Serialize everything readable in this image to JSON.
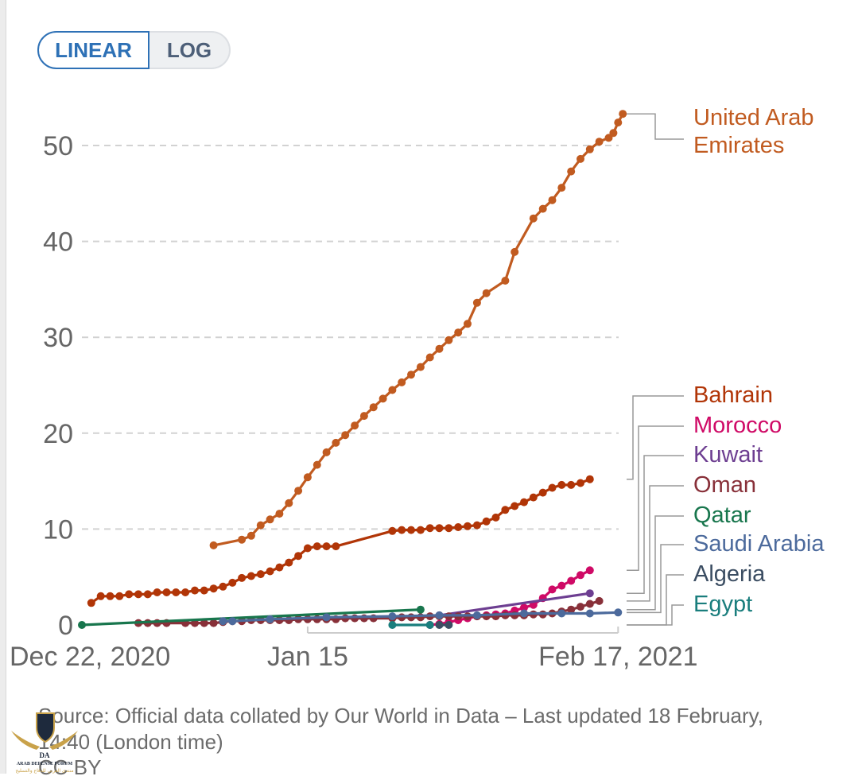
{
  "controls": {
    "scale_options": [
      "LINEAR",
      "LOG"
    ],
    "selected": "LINEAR"
  },
  "footer": {
    "source": "Source: Official data collated by Our World in Data – Last updated 18 February, 14:40 (London time)",
    "license": "CC BY"
  },
  "watermark": {
    "text": "ARAB DEFENSE FORUM",
    "arabic_text": "منتدى العربي للدفاع والتسليح"
  },
  "chart_data": {
    "type": "line",
    "title": "",
    "xlabel": "",
    "ylabel": "",
    "ylim": [
      0,
      55
    ],
    "yticks": [
      0,
      10,
      20,
      30,
      40,
      50
    ],
    "x_start": "2020-12-22",
    "x_end": "2021-02-17",
    "xticks": [
      {
        "day": 0,
        "label": "Dec 22, 2020"
      },
      {
        "day": 24,
        "label": "Jan 15"
      },
      {
        "day": 57,
        "label": "Feb 17, 2021"
      }
    ],
    "grid": "horizontal-dashed",
    "legend": "right-end-labels",
    "series": [
      {
        "name": "United Arab Emirates",
        "color": "#c15b20",
        "points": [
          [
            14,
            8.3
          ],
          [
            17,
            8.9
          ],
          [
            18,
            9.3
          ],
          [
            19,
            10.4
          ],
          [
            20,
            11.0
          ],
          [
            21,
            11.6
          ],
          [
            22,
            12.7
          ],
          [
            23,
            14.0
          ],
          [
            24,
            15.4
          ],
          [
            25,
            16.7
          ],
          [
            26,
            18.0
          ],
          [
            27,
            19.0
          ],
          [
            28,
            19.8
          ],
          [
            29,
            20.8
          ],
          [
            30,
            21.8
          ],
          [
            31,
            22.7
          ],
          [
            32,
            23.6
          ],
          [
            33,
            24.5
          ],
          [
            34,
            25.3
          ],
          [
            35,
            26.1
          ],
          [
            36,
            26.9
          ],
          [
            37,
            27.9
          ],
          [
            38,
            28.8
          ],
          [
            39,
            29.7
          ],
          [
            40,
            30.5
          ],
          [
            41,
            31.4
          ],
          [
            42,
            33.6
          ],
          [
            43,
            34.6
          ],
          [
            45,
            35.9
          ],
          [
            46,
            38.9
          ],
          [
            48,
            42.4
          ],
          [
            49,
            43.4
          ],
          [
            50,
            44.3
          ],
          [
            51,
            45.6
          ],
          [
            52,
            47.3
          ],
          [
            53,
            48.6
          ],
          [
            54,
            49.6
          ],
          [
            55,
            50.4
          ],
          [
            56,
            50.8
          ],
          [
            56.5,
            51.3
          ],
          [
            57,
            52.4
          ],
          [
            57.5,
            53.3
          ]
        ]
      },
      {
        "name": "Bahrain",
        "color": "#b13507",
        "points": [
          [
            1,
            2.3
          ],
          [
            2,
            3.0
          ],
          [
            3,
            3.0
          ],
          [
            4,
            3.0
          ],
          [
            5,
            3.2
          ],
          [
            6,
            3.2
          ],
          [
            7,
            3.2
          ],
          [
            8,
            3.4
          ],
          [
            9,
            3.4
          ],
          [
            10,
            3.4
          ],
          [
            11,
            3.4
          ],
          [
            12,
            3.6
          ],
          [
            13,
            3.6
          ],
          [
            14,
            3.8
          ],
          [
            15,
            4.0
          ],
          [
            16,
            4.4
          ],
          [
            17,
            4.9
          ],
          [
            18,
            5.1
          ],
          [
            19,
            5.3
          ],
          [
            20,
            5.6
          ],
          [
            21,
            6.0
          ],
          [
            22,
            6.5
          ],
          [
            23,
            7.2
          ],
          [
            24,
            8.0
          ],
          [
            25,
            8.2
          ],
          [
            26,
            8.2
          ],
          [
            27,
            8.2
          ],
          [
            33,
            9.8
          ],
          [
            34,
            9.9
          ],
          [
            35,
            9.9
          ],
          [
            36,
            9.9
          ],
          [
            37,
            10.1
          ],
          [
            38,
            10.1
          ],
          [
            39,
            10.1
          ],
          [
            40,
            10.2
          ],
          [
            41,
            10.3
          ],
          [
            42,
            10.4
          ],
          [
            43,
            10.8
          ],
          [
            44,
            11.2
          ],
          [
            45,
            12.0
          ],
          [
            46,
            12.4
          ],
          [
            47,
            12.8
          ],
          [
            48,
            13.3
          ],
          [
            49,
            13.8
          ],
          [
            50,
            14.3
          ],
          [
            51,
            14.6
          ],
          [
            52,
            14.6
          ],
          [
            53,
            14.8
          ],
          [
            54,
            15.2
          ]
        ]
      },
      {
        "name": "Morocco",
        "color": "#cf0a66",
        "points": [
          [
            37,
            0.0
          ],
          [
            38,
            0.1
          ],
          [
            39,
            0.3
          ],
          [
            40,
            0.5
          ],
          [
            41,
            0.7
          ],
          [
            42,
            0.9
          ],
          [
            43,
            1.0
          ],
          [
            44,
            1.1
          ],
          [
            45,
            1.2
          ],
          [
            46,
            1.5
          ],
          [
            47,
            1.8
          ],
          [
            48,
            2.1
          ],
          [
            49,
            2.8
          ],
          [
            50,
            3.7
          ],
          [
            51,
            4.1
          ],
          [
            52,
            4.6
          ],
          [
            53,
            5.2
          ],
          [
            54,
            5.7
          ]
        ]
      },
      {
        "name": "Kuwait",
        "color": "#6d3e91",
        "points": [
          [
            38,
            1.0
          ],
          [
            54,
            3.3
          ]
        ]
      },
      {
        "name": "Oman",
        "color": "#883039",
        "points": [
          [
            6,
            0.2
          ],
          [
            7,
            0.2
          ],
          [
            8,
            0.2
          ],
          [
            9,
            0.2
          ],
          [
            11,
            0.2
          ],
          [
            12,
            0.2
          ],
          [
            13,
            0.2
          ],
          [
            14,
            0.2
          ],
          [
            15,
            0.3
          ],
          [
            16,
            0.4
          ],
          [
            17,
            0.4
          ],
          [
            18,
            0.5
          ],
          [
            19,
            0.5
          ],
          [
            20,
            0.5
          ],
          [
            21,
            0.5
          ],
          [
            22,
            0.5
          ],
          [
            23,
            0.6
          ],
          [
            24,
            0.6
          ],
          [
            25,
            0.6
          ],
          [
            26,
            0.6
          ],
          [
            27,
            0.6
          ],
          [
            28,
            0.7
          ],
          [
            29,
            0.7
          ],
          [
            30,
            0.7
          ],
          [
            31,
            0.7
          ],
          [
            33,
            0.7
          ],
          [
            34,
            0.8
          ],
          [
            35,
            0.8
          ],
          [
            36,
            0.8
          ],
          [
            37,
            0.9
          ],
          [
            38,
            0.9
          ],
          [
            39,
            0.9
          ],
          [
            40,
            0.9
          ],
          [
            41,
            0.9
          ],
          [
            42,
            0.9
          ],
          [
            43,
            0.9
          ],
          [
            44,
            0.9
          ],
          [
            45,
            1.0
          ],
          [
            46,
            1.0
          ],
          [
            47,
            1.0
          ],
          [
            48,
            1.1
          ],
          [
            49,
            1.1
          ],
          [
            50,
            1.2
          ],
          [
            51,
            1.4
          ],
          [
            52,
            1.6
          ],
          [
            53,
            1.9
          ],
          [
            54,
            2.2
          ],
          [
            55,
            2.5
          ]
        ]
      },
      {
        "name": "Qatar",
        "color": "#18764d",
        "points": [
          [
            0,
            0.0
          ],
          [
            36,
            1.6
          ]
        ]
      },
      {
        "name": "Saudi Arabia",
        "color": "#4c6a9c",
        "points": [
          [
            15,
            0.4
          ],
          [
            16,
            0.4
          ],
          [
            20,
            0.6
          ],
          [
            26,
            0.8
          ],
          [
            33,
            0.9
          ],
          [
            38,
            1.0
          ],
          [
            42,
            1.0
          ],
          [
            47,
            1.2
          ],
          [
            51,
            1.2
          ],
          [
            54,
            1.2
          ],
          [
            57,
            1.3
          ]
        ]
      },
      {
        "name": "Algeria",
        "color": "#3b4d62",
        "points": [
          [
            38,
            0.0
          ],
          [
            39,
            0.0
          ]
        ]
      },
      {
        "name": "Egypt",
        "color": "#1a7e7d",
        "points": [
          [
            33,
            0.0
          ],
          [
            37,
            0.0
          ]
        ]
      }
    ],
    "end_labels": [
      {
        "name": "United Arab Emirates",
        "lines": [
          "United Arab",
          "Emirates"
        ],
        "color": "#c15b20"
      },
      {
        "name": "Bahrain",
        "lines": [
          "Bahrain"
        ],
        "color": "#b13507"
      },
      {
        "name": "Morocco",
        "lines": [
          "Morocco"
        ],
        "color": "#cf0a66"
      },
      {
        "name": "Kuwait",
        "lines": [
          "Kuwait"
        ],
        "color": "#6d3e91"
      },
      {
        "name": "Oman",
        "lines": [
          "Oman"
        ],
        "color": "#883039"
      },
      {
        "name": "Qatar",
        "lines": [
          "Qatar"
        ],
        "color": "#18764d"
      },
      {
        "name": "Saudi Arabia",
        "lines": [
          "Saudi Arabia"
        ],
        "color": "#4c6a9c"
      },
      {
        "name": "Algeria",
        "lines": [
          "Algeria"
        ],
        "color": "#3b4d62"
      },
      {
        "name": "Egypt",
        "lines": [
          "Egypt"
        ],
        "color": "#1a7e7d"
      }
    ]
  }
}
